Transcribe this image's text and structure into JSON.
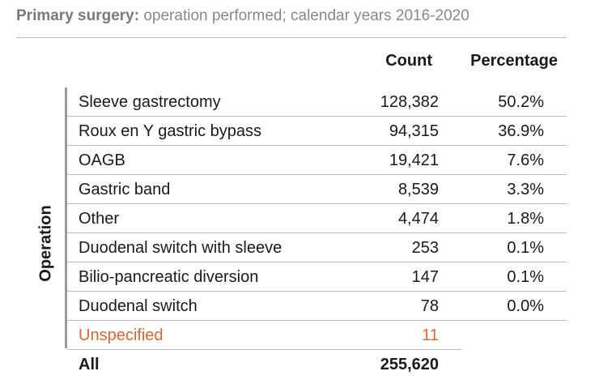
{
  "title": {
    "bold": "Primary surgery:",
    "rest": " operation performed; calendar years 2016-2020"
  },
  "columns": {
    "count": "Count",
    "percentage": "Percentage"
  },
  "group_label": "Operation",
  "rows": [
    {
      "name": "Sleeve gastrectomy",
      "count": "128,382",
      "pct": "50.2%"
    },
    {
      "name": "Roux en Y gastric bypass",
      "count": "94,315",
      "pct": "36.9%"
    },
    {
      "name": "OAGB",
      "count": "19,421",
      "pct": "7.6%"
    },
    {
      "name": "Gastric band",
      "count": "8,539",
      "pct": "3.3%"
    },
    {
      "name": "Other",
      "count": "4,474",
      "pct": "1.8%"
    },
    {
      "name": "Duodenal switch with sleeve",
      "count": "253",
      "pct": "0.1%"
    },
    {
      "name": "Bilio-pancreatic diversion",
      "count": "147",
      "pct": "0.1%"
    },
    {
      "name": "Duodenal switch",
      "count": "78",
      "pct": "0.0%"
    }
  ],
  "unspecified": {
    "name": "Unspecified",
    "count": "11"
  },
  "total": {
    "name": "All",
    "count": "255,620"
  },
  "colors": {
    "unspecified": "#e0642f",
    "title": "#888888"
  }
}
